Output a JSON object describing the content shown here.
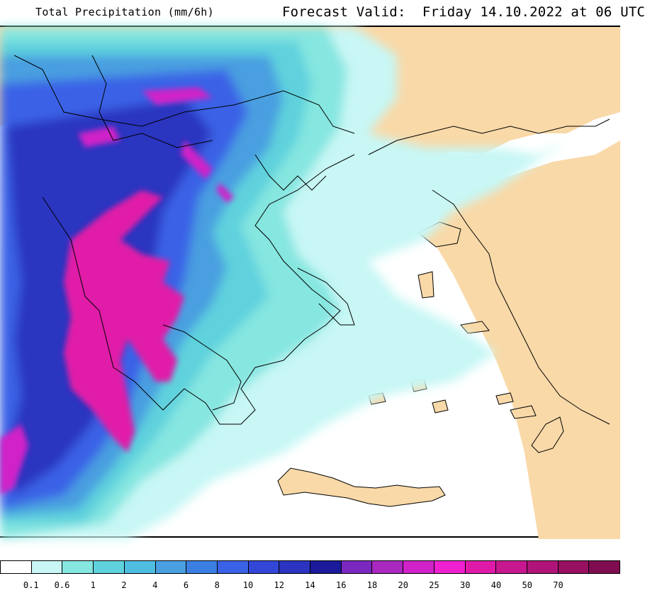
{
  "header": {
    "product_title": "Total Precipitation (mm/6h)",
    "forecast_valid": "Forecast Valid:  Friday 14.10.2022 at 06 UTC"
  },
  "colors": {
    "land": "#f9d9a8",
    "sea": "#ffffff",
    "coast_line": "#000000"
  },
  "legend": {
    "colors": [
      "#ffffff",
      "#c8f7f5",
      "#86e6e0",
      "#5fd2dd",
      "#4fbde0",
      "#4a9fe0",
      "#3b7fe2",
      "#3a62e6",
      "#3247d8",
      "#2a34c0",
      "#1a1a9a",
      "#7a28c0",
      "#a828c0",
      "#d022c8",
      "#f020d0",
      "#e01aa8",
      "#c81890",
      "#b01478",
      "#981060",
      "#800c50"
    ],
    "ticks": [
      "0.1",
      "0.6",
      "1",
      "2",
      "4",
      "6",
      "8",
      "10",
      "12",
      "14",
      "16",
      "18",
      "20",
      "25",
      "30",
      "40",
      "50",
      "70"
    ]
  }
}
